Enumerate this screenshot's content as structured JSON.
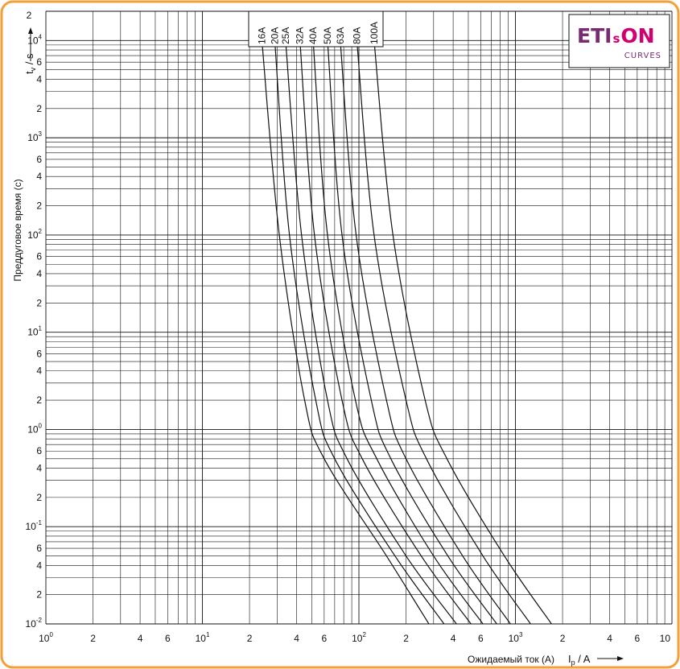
{
  "chart_data": {
    "type": "line",
    "scale": {
      "x": "log",
      "y": "log"
    },
    "xlim": [
      1,
      10000
    ],
    "ylim": [
      0.01,
      20000
    ],
    "grid": true,
    "xlabel": "Ожидаемый ток (A)",
    "xsymbol": {
      "main": "I",
      "sub": "p",
      "rest": " / A"
    },
    "ylabel": "Преддуговое время (с)",
    "ysymbol": {
      "main": "t",
      "sub": "v",
      "rest": " / s"
    },
    "y_top_tick": "2",
    "x_ticks": [
      {
        "base": "10",
        "exp": "0"
      },
      {
        "base": "2",
        "exp": ""
      },
      {
        "base": "4",
        "exp": ""
      },
      {
        "base": "6",
        "exp": ""
      },
      {
        "base": "10",
        "exp": "1"
      },
      {
        "base": "2",
        "exp": ""
      },
      {
        "base": "4",
        "exp": ""
      },
      {
        "base": "6",
        "exp": ""
      },
      {
        "base": "10",
        "exp": "2"
      },
      {
        "base": "2",
        "exp": ""
      },
      {
        "base": "4",
        "exp": ""
      },
      {
        "base": "6",
        "exp": ""
      },
      {
        "base": "10",
        "exp": "3"
      },
      {
        "base": "2",
        "exp": ""
      },
      {
        "base": "4",
        "exp": ""
      },
      {
        "base": "6",
        "exp": ""
      },
      {
        "base": "10",
        "exp": ""
      }
    ],
    "y_ticks": [
      {
        "base": "10",
        "exp": "4"
      },
      {
        "base": "6",
        "exp": ""
      },
      {
        "base": "4",
        "exp": ""
      },
      {
        "base": "2",
        "exp": ""
      },
      {
        "base": "10",
        "exp": "3"
      },
      {
        "base": "6",
        "exp": ""
      },
      {
        "base": "4",
        "exp": ""
      },
      {
        "base": "2",
        "exp": ""
      },
      {
        "base": "10",
        "exp": "2"
      },
      {
        "base": "6",
        "exp": ""
      },
      {
        "base": "4",
        "exp": ""
      },
      {
        "base": "2",
        "exp": ""
      },
      {
        "base": "10",
        "exp": "1"
      },
      {
        "base": "6",
        "exp": ""
      },
      {
        "base": "4",
        "exp": ""
      },
      {
        "base": "2",
        "exp": ""
      },
      {
        "base": "10",
        "exp": "0"
      },
      {
        "base": "6",
        "exp": ""
      },
      {
        "base": "4",
        "exp": ""
      },
      {
        "base": "2",
        "exp": ""
      },
      {
        "base": "10",
        "exp": "-1"
      },
      {
        "base": "6",
        "exp": ""
      },
      {
        "base": "4",
        "exp": ""
      },
      {
        "base": "2",
        "exp": ""
      },
      {
        "base": "10",
        "exp": "-2"
      }
    ],
    "series": [
      {
        "name": "16A",
        "points": [
          [
            24,
            10000
          ],
          [
            31,
            100
          ],
          [
            45,
            2
          ],
          [
            60,
            0.5
          ],
          [
            150,
            0.05
          ],
          [
            280,
            0.01
          ]
        ]
      },
      {
        "name": "20A",
        "points": [
          [
            29,
            10000
          ],
          [
            36,
            100
          ],
          [
            53,
            2
          ],
          [
            70,
            0.5
          ],
          [
            170,
            0.05
          ],
          [
            350,
            0.01
          ]
        ]
      },
      {
        "name": "25A",
        "points": [
          [
            34,
            10000
          ],
          [
            43,
            100
          ],
          [
            63,
            2
          ],
          [
            84,
            0.5
          ],
          [
            200,
            0.05
          ],
          [
            420,
            0.01
          ]
        ]
      },
      {
        "name": "32A",
        "points": [
          [
            42,
            10000
          ],
          [
            52,
            100
          ],
          [
            78,
            2
          ],
          [
            105,
            0.5
          ],
          [
            250,
            0.05
          ],
          [
            520,
            0.01
          ]
        ]
      },
      {
        "name": "40A",
        "points": [
          [
            51,
            10000
          ],
          [
            63,
            100
          ],
          [
            95,
            2
          ],
          [
            130,
            0.5
          ],
          [
            300,
            0.05
          ],
          [
            620,
            0.01
          ]
        ]
      },
      {
        "name": "50A",
        "points": [
          [
            63,
            10000
          ],
          [
            78,
            100
          ],
          [
            120,
            2
          ],
          [
            160,
            0.5
          ],
          [
            370,
            0.05
          ],
          [
            760,
            0.01
          ]
        ]
      },
      {
        "name": "63A",
        "points": [
          [
            76,
            10000
          ],
          [
            96,
            100
          ],
          [
            150,
            2
          ],
          [
            200,
            0.5
          ],
          [
            460,
            0.05
          ],
          [
            930,
            0.01
          ]
        ]
      },
      {
        "name": "80A",
        "points": [
          [
            97,
            10000
          ],
          [
            125,
            100
          ],
          [
            200,
            2
          ],
          [
            270,
            0.5
          ],
          [
            620,
            0.05
          ],
          [
            1250,
            0.01
          ]
        ]
      },
      {
        "name": "100A",
        "points": [
          [
            125,
            10000
          ],
          [
            165,
            100
          ],
          [
            265,
            2
          ],
          [
            365,
            0.5
          ],
          [
            850,
            0.05
          ],
          [
            1700,
            0.01
          ]
        ]
      }
    ]
  },
  "logo": {
    "part_a": "ETI",
    "part_b": "s",
    "part_c": "ON",
    "sub": "CURVES"
  },
  "colors": {
    "frame": "#f3a03a",
    "logo_purple": "#7a2a73",
    "logo_magenta": "#d0006f"
  }
}
